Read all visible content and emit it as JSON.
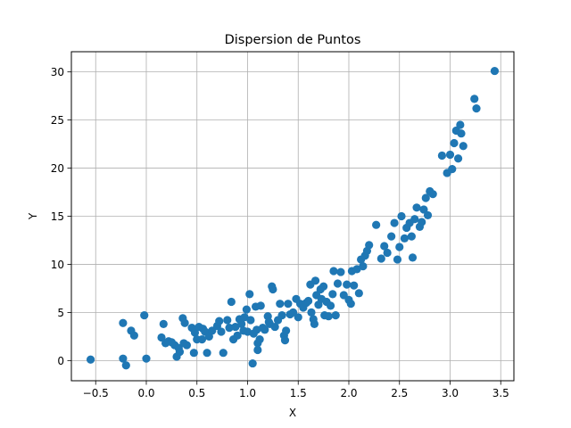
{
  "chart_data": {
    "type": "scatter",
    "title": "Dispersion de Puntos",
    "xlabel": "X",
    "ylabel": "Y",
    "xlim": [
      -0.74,
      3.63
    ],
    "ylim": [
      -2.1,
      32.1
    ],
    "xticks": [
      -0.5,
      0.0,
      0.5,
      1.0,
      1.5,
      2.0,
      2.5,
      3.0,
      3.5
    ],
    "xtick_labels": [
      "−0.5",
      "0.0",
      "0.5",
      "1.0",
      "1.5",
      "2.0",
      "2.5",
      "3.0",
      "3.5"
    ],
    "yticks": [
      0,
      5,
      10,
      15,
      20,
      25,
      30
    ],
    "ytick_labels": [
      "0",
      "5",
      "10",
      "15",
      "20",
      "25",
      "30"
    ],
    "grid": true,
    "marker_color": "#1f77b4",
    "series": [
      {
        "points": [
          [
            -0.55,
            0.1
          ],
          [
            -0.23,
            3.9
          ],
          [
            -0.23,
            0.2
          ],
          [
            -0.2,
            -0.5
          ],
          [
            -0.15,
            3.1
          ],
          [
            -0.12,
            2.6
          ],
          [
            -0.02,
            4.7
          ],
          [
            0.0,
            0.2
          ],
          [
            0.15,
            2.4
          ],
          [
            0.17,
            3.8
          ],
          [
            0.19,
            1.8
          ],
          [
            0.22,
            2.0
          ],
          [
            0.25,
            1.9
          ],
          [
            0.28,
            1.6
          ],
          [
            0.3,
            0.4
          ],
          [
            0.32,
            1.3
          ],
          [
            0.33,
            0.9
          ],
          [
            0.36,
            4.4
          ],
          [
            0.37,
            1.8
          ],
          [
            0.38,
            3.9
          ],
          [
            0.4,
            1.6
          ],
          [
            0.45,
            3.4
          ],
          [
            0.47,
            0.8
          ],
          [
            0.48,
            2.9
          ],
          [
            0.5,
            2.2
          ],
          [
            0.52,
            3.5
          ],
          [
            0.55,
            2.2
          ],
          [
            0.56,
            3.3
          ],
          [
            0.58,
            3.0
          ],
          [
            0.6,
            0.8
          ],
          [
            0.62,
            2.5
          ],
          [
            0.65,
            3.1
          ],
          [
            0.7,
            3.6
          ],
          [
            0.72,
            4.1
          ],
          [
            0.74,
            3.0
          ],
          [
            0.76,
            0.8
          ],
          [
            0.8,
            4.2
          ],
          [
            0.82,
            3.4
          ],
          [
            0.84,
            6.1
          ],
          [
            0.86,
            2.2
          ],
          [
            0.88,
            3.5
          ],
          [
            0.9,
            2.6
          ],
          [
            0.92,
            4.3
          ],
          [
            0.94,
            3.8
          ],
          [
            0.96,
            3.1
          ],
          [
            0.97,
            4.5
          ],
          [
            0.99,
            5.3
          ],
          [
            1.0,
            3.0
          ],
          [
            1.02,
            6.9
          ],
          [
            1.03,
            4.2
          ],
          [
            1.05,
            -0.3
          ],
          [
            1.06,
            2.8
          ],
          [
            1.08,
            5.6
          ],
          [
            1.09,
            3.2
          ],
          [
            1.1,
            1.8
          ],
          [
            1.1,
            1.1
          ],
          [
            1.12,
            2.2
          ],
          [
            1.13,
            5.7
          ],
          [
            1.15,
            3.4
          ],
          [
            1.17,
            3.2
          ],
          [
            1.2,
            4.6
          ],
          [
            1.21,
            4.0
          ],
          [
            1.22,
            3.8
          ],
          [
            1.24,
            7.7
          ],
          [
            1.25,
            7.4
          ],
          [
            1.27,
            3.5
          ],
          [
            1.3,
            4.2
          ],
          [
            1.32,
            5.9
          ],
          [
            1.34,
            4.7
          ],
          [
            1.36,
            2.6
          ],
          [
            1.37,
            2.1
          ],
          [
            1.38,
            3.1
          ],
          [
            1.4,
            5.9
          ],
          [
            1.42,
            4.8
          ],
          [
            1.45,
            5.0
          ],
          [
            1.48,
            6.4
          ],
          [
            1.5,
            4.5
          ],
          [
            1.52,
            5.9
          ],
          [
            1.55,
            5.5
          ],
          [
            1.58,
            6.0
          ],
          [
            1.6,
            6.2
          ],
          [
            1.62,
            7.9
          ],
          [
            1.63,
            5.0
          ],
          [
            1.65,
            4.3
          ],
          [
            1.66,
            3.8
          ],
          [
            1.67,
            8.3
          ],
          [
            1.68,
            6.8
          ],
          [
            1.7,
            5.8
          ],
          [
            1.72,
            7.4
          ],
          [
            1.73,
            6.4
          ],
          [
            1.75,
            7.7
          ],
          [
            1.76,
            4.7
          ],
          [
            1.78,
            6.1
          ],
          [
            1.8,
            4.6
          ],
          [
            1.82,
            5.7
          ],
          [
            1.84,
            6.9
          ],
          [
            1.85,
            9.3
          ],
          [
            1.87,
            4.7
          ],
          [
            1.89,
            8.0
          ],
          [
            1.92,
            9.2
          ],
          [
            1.95,
            6.8
          ],
          [
            1.98,
            7.9
          ],
          [
            2.0,
            6.3
          ],
          [
            2.02,
            5.9
          ],
          [
            2.03,
            9.3
          ],
          [
            2.05,
            7.8
          ],
          [
            2.08,
            9.5
          ],
          [
            2.1,
            7.0
          ],
          [
            2.12,
            10.5
          ],
          [
            2.14,
            9.8
          ],
          [
            2.16,
            10.9
          ],
          [
            2.18,
            11.4
          ],
          [
            2.2,
            12.0
          ],
          [
            2.27,
            14.1
          ],
          [
            2.32,
            10.6
          ],
          [
            2.35,
            11.9
          ],
          [
            2.38,
            11.2
          ],
          [
            2.42,
            12.9
          ],
          [
            2.45,
            14.3
          ],
          [
            2.48,
            10.5
          ],
          [
            2.5,
            11.8
          ],
          [
            2.52,
            15.0
          ],
          [
            2.55,
            12.7
          ],
          [
            2.57,
            13.8
          ],
          [
            2.6,
            14.3
          ],
          [
            2.62,
            12.9
          ],
          [
            2.63,
            10.7
          ],
          [
            2.65,
            14.7
          ],
          [
            2.67,
            15.9
          ],
          [
            2.7,
            13.9
          ],
          [
            2.72,
            14.4
          ],
          [
            2.74,
            15.7
          ],
          [
            2.76,
            16.9
          ],
          [
            2.78,
            15.1
          ],
          [
            2.8,
            17.6
          ],
          [
            2.83,
            17.3
          ],
          [
            2.92,
            21.3
          ],
          [
            2.97,
            19.5
          ],
          [
            3.0,
            21.4
          ],
          [
            3.02,
            19.9
          ],
          [
            3.04,
            22.6
          ],
          [
            3.06,
            23.9
          ],
          [
            3.08,
            21.0
          ],
          [
            3.1,
            24.5
          ],
          [
            3.11,
            23.6
          ],
          [
            3.13,
            22.3
          ],
          [
            3.24,
            27.2
          ],
          [
            3.26,
            26.2
          ],
          [
            3.44,
            30.1
          ]
        ]
      }
    ]
  }
}
